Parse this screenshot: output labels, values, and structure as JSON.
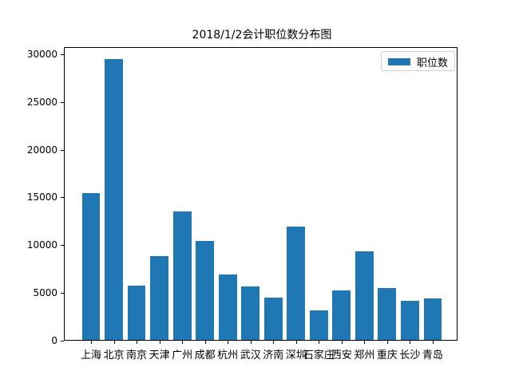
{
  "chart_data": {
    "type": "bar",
    "title": "2018/1/2会计职位数分布图",
    "xlabel": "",
    "ylabel": "",
    "categories": [
      "上海",
      "北京",
      "南京",
      "天津",
      "广州",
      "成都",
      "杭州",
      "武汉",
      "济南",
      "深圳",
      "石家庄",
      "西安",
      "郑州",
      "重庆",
      "长沙",
      "青岛"
    ],
    "series": [
      {
        "name": "职位数",
        "color": "#1f77b4",
        "values": [
          15350,
          29400,
          5680,
          8770,
          13450,
          10350,
          6850,
          5600,
          4430,
          11860,
          3090,
          5180,
          9270,
          5430,
          4090,
          4340
        ]
      }
    ],
    "ylim": [
      0,
      30750
    ],
    "yticks": [
      0,
      5000,
      10000,
      15000,
      20000,
      25000,
      30000
    ],
    "grid": false,
    "legend_position": "upper right"
  },
  "title": "2018/1/2会计职位数分布图",
  "legend": {
    "label": "职位数"
  },
  "yticks": [
    "0",
    "5000",
    "10000",
    "15000",
    "20000",
    "25000",
    "30000"
  ]
}
